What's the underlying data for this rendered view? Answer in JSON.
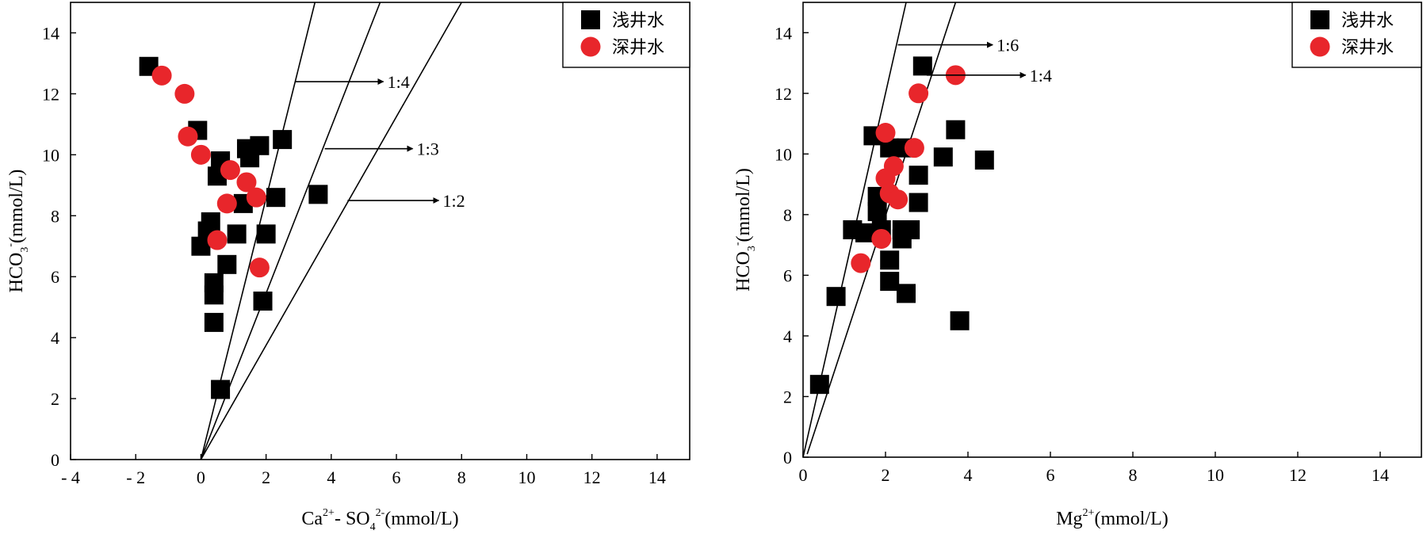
{
  "chart_data": [
    {
      "type": "scatter",
      "title": "",
      "xlabel_parts": [
        "Ca",
        "2+",
        "- SO",
        "4",
        "2-",
        "(mmol/L)"
      ],
      "ylabel_parts": [
        "HCO",
        "3",
        "-",
        "(mmol/L)"
      ],
      "xlim": [
        -4,
        15
      ],
      "ylim": [
        0,
        15
      ],
      "xticks": [
        -4,
        -2,
        0,
        2,
        4,
        6,
        8,
        10,
        12,
        14
      ],
      "xtick_labels": [
        "- 4",
        "- 2",
        "0",
        "2",
        "4",
        "6",
        "8",
        "10",
        "12",
        "14"
      ],
      "yticks": [
        0,
        2,
        4,
        6,
        8,
        10,
        12,
        14
      ],
      "ytick_labels": [
        "0",
        "2",
        "4",
        "6",
        "8",
        "10",
        "12",
        "14"
      ],
      "grid": false,
      "legend_position": "top-right",
      "series": [
        {
          "name": "浅井水",
          "marker": "square",
          "color": "#000000",
          "points": [
            [
              -1.6,
              12.9
            ],
            [
              -0.1,
              10.8
            ],
            [
              0.6,
              9.8
            ],
            [
              0.5,
              9.3
            ],
            [
              1.4,
              10.2
            ],
            [
              1.8,
              10.3
            ],
            [
              2.5,
              10.5
            ],
            [
              1.5,
              9.9
            ],
            [
              1.3,
              8.4
            ],
            [
              2.3,
              8.6
            ],
            [
              3.6,
              8.7
            ],
            [
              0.3,
              7.8
            ],
            [
              0.2,
              7.5
            ],
            [
              1.1,
              7.4
            ],
            [
              0.0,
              7.0
            ],
            [
              2.0,
              7.4
            ],
            [
              0.8,
              6.4
            ],
            [
              0.4,
              5.8
            ],
            [
              0.4,
              5.4
            ],
            [
              1.9,
              5.2
            ],
            [
              0.4,
              4.5
            ],
            [
              0.6,
              2.3
            ]
          ]
        },
        {
          "name": "深井水",
          "marker": "circle",
          "color": "#e8262b",
          "points": [
            [
              -1.2,
              12.6
            ],
            [
              -0.5,
              12.0
            ],
            [
              -0.4,
              10.6
            ],
            [
              0.0,
              10.0
            ],
            [
              0.9,
              9.5
            ],
            [
              1.4,
              9.1
            ],
            [
              1.7,
              8.6
            ],
            [
              0.8,
              8.4
            ],
            [
              0.5,
              7.2
            ],
            [
              1.8,
              6.3
            ]
          ]
        }
      ],
      "reference_lines": [
        {
          "label": "1:4",
          "x0": 0,
          "y0": 0,
          "x1": 3.5,
          "y1": 15
        },
        {
          "label": "1:3",
          "x0": 0,
          "y0": 0,
          "x1": 5.5,
          "y1": 15
        },
        {
          "label": "1:2",
          "x0": 0,
          "y0": 0,
          "x1": 8.0,
          "y1": 15
        }
      ],
      "annotations": [
        {
          "label": "1:4",
          "from": [
            2.9,
            12.4
          ],
          "to": [
            5.6,
            12.4
          ]
        },
        {
          "label": "1:3",
          "from": [
            3.8,
            10.2
          ],
          "to": [
            6.5,
            10.2
          ]
        },
        {
          "label": "1:2",
          "from": [
            4.5,
            8.5
          ],
          "to": [
            7.3,
            8.5
          ]
        }
      ]
    },
    {
      "type": "scatter",
      "title": "",
      "xlabel_parts": [
        "Mg",
        "2+",
        "",
        "",
        "",
        "(mmol/L)"
      ],
      "ylabel_parts": [
        "HCO",
        "3",
        "-",
        "(mmol/L)"
      ],
      "xlim": [
        0,
        15
      ],
      "ylim": [
        0,
        15
      ],
      "xticks": [
        0,
        2,
        4,
        6,
        8,
        10,
        12,
        14
      ],
      "xtick_labels": [
        "0",
        "2",
        "4",
        "6",
        "8",
        "10",
        "12",
        "14"
      ],
      "yticks": [
        0,
        2,
        4,
        6,
        8,
        10,
        12,
        14
      ],
      "ytick_labels": [
        "0",
        "2",
        "4",
        "6",
        "8",
        "10",
        "12",
        "14"
      ],
      "grid": false,
      "legend_position": "top-right",
      "series": [
        {
          "name": "浅井水",
          "marker": "square",
          "color": "#000000",
          "points": [
            [
              2.9,
              12.9
            ],
            [
              1.7,
              10.6
            ],
            [
              3.7,
              10.8
            ],
            [
              2.1,
              10.2
            ],
            [
              2.5,
              10.2
            ],
            [
              3.4,
              9.9
            ],
            [
              4.4,
              9.8
            ],
            [
              2.8,
              9.3
            ],
            [
              1.8,
              8.6
            ],
            [
              1.8,
              8.1
            ],
            [
              2.8,
              8.4
            ],
            [
              1.2,
              7.5
            ],
            [
              1.5,
              7.4
            ],
            [
              1.9,
              7.5
            ],
            [
              2.4,
              7.5
            ],
            [
              2.6,
              7.5
            ],
            [
              2.4,
              7.2
            ],
            [
              2.1,
              6.5
            ],
            [
              2.1,
              5.8
            ],
            [
              2.5,
              5.4
            ],
            [
              0.8,
              5.3
            ],
            [
              3.8,
              4.5
            ],
            [
              0.4,
              2.4
            ]
          ]
        },
        {
          "name": "深井水",
          "marker": "circle",
          "color": "#e8262b",
          "points": [
            [
              3.7,
              12.6
            ],
            [
              2.8,
              12.0
            ],
            [
              2.0,
              10.7
            ],
            [
              2.7,
              10.2
            ],
            [
              2.2,
              9.6
            ],
            [
              2.0,
              9.2
            ],
            [
              2.1,
              8.7
            ],
            [
              2.3,
              8.5
            ],
            [
              1.9,
              7.2
            ],
            [
              1.4,
              6.4
            ]
          ]
        }
      ],
      "reference_lines": [
        {
          "label": "1:6",
          "x0": 0.0,
          "y0": 0.0,
          "x1": 2.5,
          "y1": 15
        },
        {
          "label": "1:4",
          "x0": 0.1,
          "y0": 0.1,
          "x1": 3.7,
          "y1": 15
        }
      ],
      "annotations": [
        {
          "label": "1:6",
          "from": [
            2.3,
            13.6
          ],
          "to": [
            4.6,
            13.6
          ]
        },
        {
          "label": "1:4",
          "from": [
            3.0,
            12.6
          ],
          "to": [
            5.4,
            12.6
          ]
        }
      ]
    }
  ]
}
